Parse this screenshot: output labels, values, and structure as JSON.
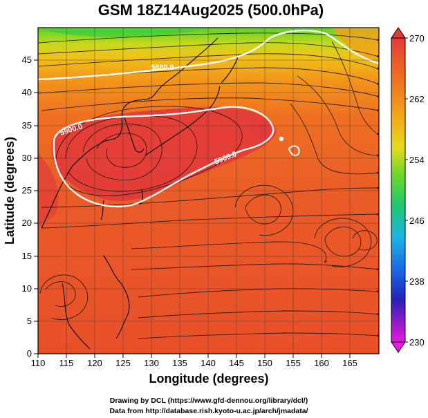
{
  "title": "GSM 18Z14Aug2025 (500.0hPa)",
  "x_axis": {
    "label": "Longitude (degrees)",
    "range": [
      110,
      170
    ],
    "ticks": [
      110,
      115,
      120,
      125,
      130,
      135,
      140,
      145,
      150,
      155,
      160,
      165
    ]
  },
  "y_axis": {
    "label": "Latitude  (degrees)",
    "range": [
      0,
      50
    ],
    "ticks": [
      0,
      5,
      10,
      15,
      20,
      25,
      30,
      35,
      40,
      45
    ]
  },
  "colorbar": {
    "ticks": [
      270,
      262,
      254,
      246,
      238,
      230
    ],
    "range": [
      230,
      270
    ]
  },
  "contour_labels": [
    "5900.0",
    "5880.0",
    "5900.0"
  ],
  "credits": {
    "line1": "Drawing by DCL (https://www.gfd-dennou.org/library/dcl/)",
    "line2": "Data from http://database.rish.kyoto-u.ac.jp/arch/jmadata/"
  },
  "colors": {
    "warm": "#e8502a",
    "hot": "#e2393a",
    "orange": "#f07a1a",
    "yellow": "#e8d61a",
    "green": "#5ed22a",
    "contour": "#ffffff"
  }
}
